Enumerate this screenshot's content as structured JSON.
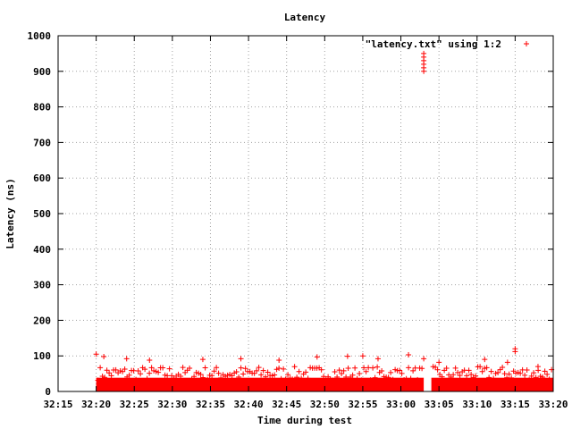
{
  "chart_data": {
    "type": "scatter",
    "title": "Latency",
    "xlabel": "Time during test",
    "ylabel": "Latency (ns)",
    "xlim": [
      "32:15",
      "33:20"
    ],
    "ylim": [
      0,
      1000
    ],
    "x_ticks": [
      "32:15",
      "32:20",
      "32:25",
      "32:30",
      "32:35",
      "32:40",
      "32:45",
      "32:50",
      "32:55",
      "33:00",
      "33:05",
      "33:10",
      "33:15",
      "33:20"
    ],
    "y_ticks": [
      0,
      100,
      200,
      300,
      400,
      500,
      600,
      700,
      800,
      900,
      1000
    ],
    "grid": true,
    "legend": {
      "position": "top-right",
      "entries": [
        "\"latency.txt\" using 1:2"
      ]
    },
    "series": [
      {
        "name": "\"latency.txt\" using 1:2",
        "color": "#ff0000",
        "marker": "plus",
        "points": [
          [
            "32:20",
            105
          ],
          [
            "32:21",
            98
          ],
          [
            "32:24",
            92
          ],
          [
            "32:27",
            88
          ],
          [
            "32:34",
            90
          ],
          [
            "32:39",
            92
          ],
          [
            "32:44",
            88
          ],
          [
            "32:49",
            97
          ],
          [
            "32:53",
            99
          ],
          [
            "32:55",
            100
          ],
          [
            "32:57",
            92
          ],
          [
            "33:01",
            103
          ],
          [
            "33:03",
            92
          ],
          [
            "33:03",
            900
          ],
          [
            "33:03",
            910
          ],
          [
            "33:03",
            920
          ],
          [
            "33:03",
            930
          ],
          [
            "33:03",
            940
          ],
          [
            "33:03",
            950
          ],
          [
            "33:05",
            82
          ],
          [
            "33:11",
            90
          ],
          [
            "33:14",
            82
          ],
          [
            "33:15",
            120
          ],
          [
            "33:15",
            112
          ],
          [
            "33:18",
            70
          ]
        ],
        "dense_band": {
          "x_start": "32:20",
          "x_end": "33:20",
          "gap": [
            "33:03",
            "33:04"
          ],
          "y_min": 0,
          "y_max": 70
        }
      }
    ]
  }
}
